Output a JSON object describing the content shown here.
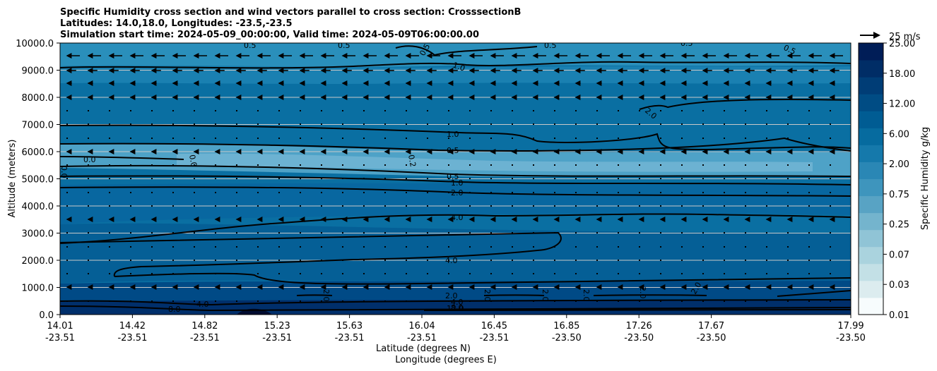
{
  "chart_data": {
    "type": "contour",
    "title": [
      "Specific Humidity cross section and wind vectors parallel to cross section: CrosssectionB",
      "Latitudes: 14.0,18.0, Longitudes: -23.5,-23.5",
      "Simulation start time: 2024-05-09_00:00:00, Valid time: 2024-05-09T06:00:00.00"
    ],
    "ylabel": "Altitude (meters)",
    "xlabel_lat": "Latitude (degrees N)",
    "xlabel_lon": "Longitude (degrees E)",
    "ylim": [
      0,
      10000
    ],
    "y_ticks": [
      {
        "value": 0,
        "label": "0.0"
      },
      {
        "value": 1000,
        "label": "1000.0"
      },
      {
        "value": 2000,
        "label": "2000.0"
      },
      {
        "value": 3000,
        "label": "3000.0"
      },
      {
        "value": 4000,
        "label": "4000.0"
      },
      {
        "value": 5000,
        "label": "5000.0"
      },
      {
        "value": 6000,
        "label": "6000.0"
      },
      {
        "value": 7000,
        "label": "7000.0"
      },
      {
        "value": 8000,
        "label": "8000.0"
      },
      {
        "value": 9000,
        "label": "9000.0"
      },
      {
        "value": 10000,
        "label": "10000.0"
      }
    ],
    "x_ticks": [
      {
        "lat": "14.01",
        "lon": "-23.51"
      },
      {
        "lat": "14.42",
        "lon": "-23.51"
      },
      {
        "lat": "14.82",
        "lon": "-23.51"
      },
      {
        "lat": "15.23",
        "lon": "-23.51"
      },
      {
        "lat": "15.63",
        "lon": "-23.51"
      },
      {
        "lat": "16.04",
        "lon": "-23.51"
      },
      {
        "lat": "16.45",
        "lon": "-23.51"
      },
      {
        "lat": "16.85",
        "lon": "-23.50"
      },
      {
        "lat": "17.26",
        "lon": "-23.50"
      },
      {
        "lat": "17.67",
        "lon": "-23.50"
      },
      {
        "lat": "17.99",
        "lon": "-23.50"
      }
    ],
    "colorbar": {
      "label": "Specific Humidity g/kg",
      "tick_labels": [
        "0.01",
        "0.03",
        "0.07",
        "0.25",
        "0.75",
        "2.00",
        "6.00",
        "12.00",
        "18.00",
        "25.00"
      ],
      "colors": [
        "#f7fcfd",
        "#dcecef",
        "#c3e0e6",
        "#aad3de",
        "#90c4d6",
        "#74b4cd",
        "#58a3c4",
        "#3e95bd",
        "#2a87b5",
        "#1579ab",
        "#066b9f",
        "#005c93",
        "#004c84",
        "#003d76",
        "#002d66",
        "#001d57"
      ]
    },
    "wind_reference": {
      "label": "25 m/s"
    },
    "contour_labels": [
      "0.5",
      "0.5",
      "0.5",
      "0.5",
      "0.5",
      "0.5",
      "1.0",
      "2.0",
      "1.0",
      "0.5",
      "0.0",
      "0.0",
      "0.0",
      "0.2",
      "0.5",
      "1.0",
      "2.0",
      "4.0",
      "4.0",
      "4.0",
      "8.0",
      "2.0",
      "2.0",
      "2.0",
      "2.0",
      "2.0",
      "2.0",
      "2.0",
      "4.0",
      "8.0",
      "12.0"
    ]
  }
}
